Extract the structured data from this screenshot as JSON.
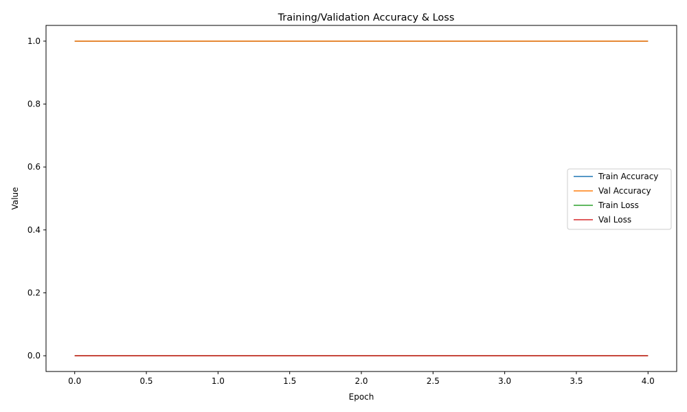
{
  "chart_data": {
    "type": "line",
    "title": "Training/Validation Accuracy & Loss",
    "xlabel": "Epoch",
    "ylabel": "Value",
    "x": [
      0,
      1,
      2,
      3,
      4
    ],
    "xlim": [
      -0.2,
      4.2
    ],
    "ylim": [
      -0.05,
      1.05
    ],
    "xticks": [
      0.0,
      0.5,
      1.0,
      1.5,
      2.0,
      2.5,
      3.0,
      3.5,
      4.0
    ],
    "xtick_labels": [
      "0.0",
      "0.5",
      "1.0",
      "1.5",
      "2.0",
      "2.5",
      "3.0",
      "3.5",
      "4.0"
    ],
    "yticks": [
      0.0,
      0.2,
      0.4,
      0.6,
      0.8,
      1.0
    ],
    "ytick_labels": [
      "0.0",
      "0.2",
      "0.4",
      "0.6",
      "0.8",
      "1.0"
    ],
    "grid": false,
    "legend_position": "center-right",
    "series": [
      {
        "name": "Train Accuracy",
        "color": "#1f77b4",
        "values": [
          1.0,
          1.0,
          1.0,
          1.0,
          1.0
        ]
      },
      {
        "name": "Val Accuracy",
        "color": "#ff7f0e",
        "values": [
          1.0,
          1.0,
          1.0,
          1.0,
          1.0
        ]
      },
      {
        "name": "Train Loss",
        "color": "#2ca02c",
        "values": [
          0.0,
          0.0,
          0.0,
          0.0,
          0.0
        ]
      },
      {
        "name": "Val Loss",
        "color": "#d62728",
        "values": [
          0.0,
          0.0,
          0.0,
          0.0,
          0.0
        ]
      }
    ]
  }
}
